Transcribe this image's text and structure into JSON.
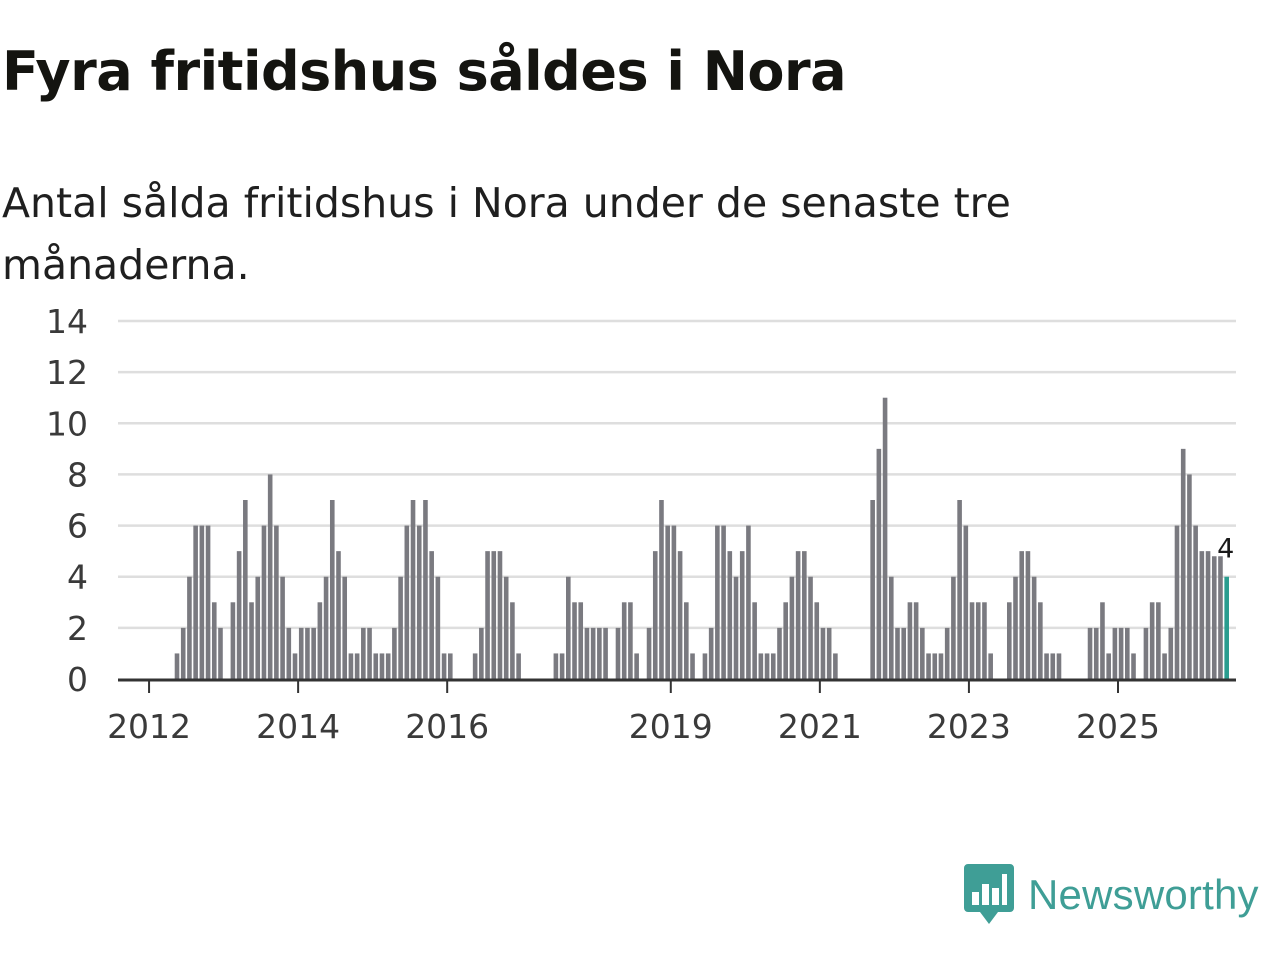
{
  "header": {
    "title": "Fyra fritidshus såldes i Nora",
    "subtitle": "Antal sålda fritidshus i Nora under de senaste tre månaderna."
  },
  "brand": {
    "name": "Newsworthy",
    "color": "#3f9e96",
    "icon": "bar-chart-badge-icon"
  },
  "colors": {
    "bar": "#7a7a80",
    "highlight": "#2a9d8f",
    "grid": "#dedede",
    "axis": "#333333"
  },
  "chart_data": {
    "type": "bar",
    "title": "Fyra fritidshus såldes i Nora",
    "subtitle": "Antal sålda fritidshus i Nora under de senaste tre månaderna.",
    "xlabel": "",
    "ylabel": "",
    "ylim": [
      0,
      14
    ],
    "yticks": [
      0,
      2,
      4,
      6,
      8,
      10,
      12,
      14
    ],
    "xlim": [
      "2011-08",
      "2026-08"
    ],
    "xticks": [
      "2012",
      "2014",
      "2016",
      "2019",
      "2021",
      "2023",
      "2025"
    ],
    "grid": true,
    "legend": "none",
    "start": "2012-01",
    "frequency": "monthly",
    "values": [
      0,
      0,
      0,
      0,
      1,
      2,
      4,
      6,
      6,
      6,
      3,
      2,
      0,
      3,
      5,
      7,
      3,
      4,
      6,
      8,
      6,
      4,
      2,
      1,
      2,
      2,
      2,
      3,
      4,
      7,
      5,
      4,
      1,
      1,
      2,
      2,
      1,
      1,
      1,
      2,
      4,
      6,
      7,
      6,
      7,
      5,
      4,
      1,
      1,
      0,
      0,
      0,
      1,
      2,
      5,
      5,
      5,
      4,
      3,
      1,
      0,
      0,
      0,
      0,
      0,
      1,
      1,
      4,
      3,
      3,
      2,
      2,
      2,
      2,
      0,
      2,
      3,
      3,
      1,
      0,
      2,
      5,
      7,
      6,
      6,
      5,
      3,
      1,
      0,
      1,
      2,
      6,
      6,
      5,
      4,
      5,
      6,
      3,
      1,
      1,
      1,
      2,
      3,
      4,
      5,
      5,
      4,
      3,
      2,
      2,
      1,
      0,
      0,
      0,
      0,
      0,
      7,
      9,
      11,
      4,
      2,
      2,
      3,
      3,
      2,
      1,
      1,
      1,
      2,
      4,
      7,
      6,
      3,
      3,
      3,
      1,
      0,
      0,
      3,
      4,
      5,
      5,
      4,
      3,
      1,
      1,
      1,
      0,
      0,
      0,
      0,
      2,
      2,
      3,
      1,
      2,
      2,
      2,
      1,
      0,
      2,
      3,
      3,
      1,
      2,
      6,
      9,
      8,
      6,
      5,
      5,
      4.8,
      4.8,
      4
    ],
    "highlight": {
      "date": "2026-06",
      "value": 4,
      "label": "4"
    }
  }
}
